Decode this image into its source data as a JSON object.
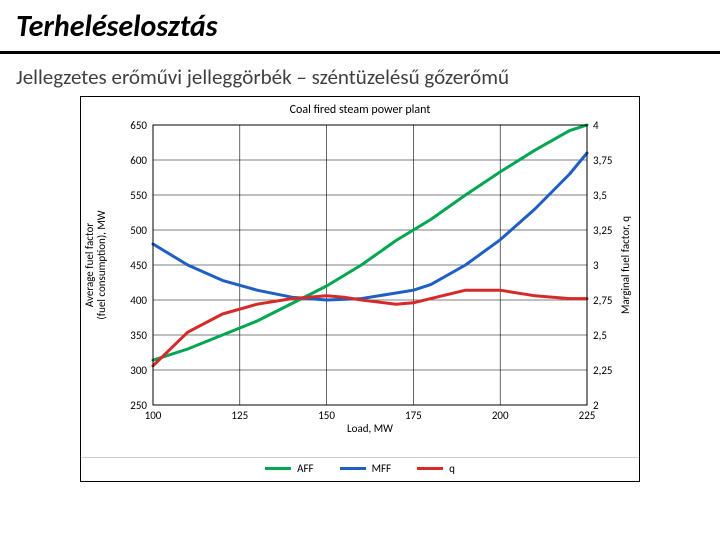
{
  "title": "Terheléselosztás",
  "title_fontsize": 30,
  "subtitle": "Jellegzetes erőművi jelleggörbék – széntüzelésű gőzerőmű",
  "subtitle_fontsize": 21,
  "chart": {
    "type": "line",
    "title": "Coal fired steam power plant",
    "title_fontsize": 12,
    "x_label": "Load, MW",
    "y1_label": "Average fuel factor (fuel consumption), MW",
    "y2_label": "Marginal fuel factor, q",
    "label_fontsize": 11,
    "tick_fontsize": 11,
    "xlim": [
      100,
      225
    ],
    "xtick_step": 25,
    "y1lim": [
      250,
      650
    ],
    "y1tick_step": 50,
    "y2lim": [
      2,
      4
    ],
    "y2tick_step": 0.25,
    "y2tick_labels": [
      "2",
      "2,25",
      "2,5",
      "2,75",
      "3",
      "3,25",
      "3,5",
      "3,75",
      "4"
    ],
    "background_color": "#ffffff",
    "grid_color": "#000000",
    "grid_width": 0.6,
    "border_color": "#000000",
    "line_width": 3,
    "series": [
      {
        "name": "AFF",
        "axis": "y1",
        "color": "#00a650",
        "points": [
          [
            100,
            314
          ],
          [
            110,
            330
          ],
          [
            120,
            350
          ],
          [
            130,
            370
          ],
          [
            140,
            395
          ],
          [
            150,
            420
          ],
          [
            160,
            450
          ],
          [
            170,
            485
          ],
          [
            180,
            515
          ],
          [
            190,
            550
          ],
          [
            200,
            583
          ],
          [
            210,
            614
          ],
          [
            220,
            642
          ],
          [
            225,
            650
          ]
        ]
      },
      {
        "name": "MFF",
        "axis": "y2",
        "color": "#1f5fc4",
        "points": [
          [
            100,
            3.15
          ],
          [
            110,
            3.0
          ],
          [
            120,
            2.89
          ],
          [
            130,
            2.82
          ],
          [
            140,
            2.77
          ],
          [
            150,
            2.75
          ],
          [
            160,
            2.76
          ],
          [
            170,
            2.8
          ],
          [
            175,
            2.82
          ],
          [
            180,
            2.86
          ],
          [
            190,
            3.0
          ],
          [
            200,
            3.18
          ],
          [
            210,
            3.4
          ],
          [
            220,
            3.65
          ],
          [
            225,
            3.8
          ]
        ]
      },
      {
        "name": "q",
        "axis": "y2",
        "color": "#d62a2a",
        "points": [
          [
            100,
            2.28
          ],
          [
            110,
            2.52
          ],
          [
            120,
            2.65
          ],
          [
            130,
            2.72
          ],
          [
            140,
            2.76
          ],
          [
            150,
            2.78
          ],
          [
            155,
            2.77
          ],
          [
            160,
            2.75
          ],
          [
            170,
            2.72
          ],
          [
            175,
            2.73
          ],
          [
            180,
            2.76
          ],
          [
            190,
            2.82
          ],
          [
            200,
            2.82
          ],
          [
            210,
            2.78
          ],
          [
            220,
            2.76
          ],
          [
            225,
            2.76
          ]
        ]
      }
    ],
    "legend": [
      {
        "label": "AFF",
        "color": "#00a650"
      },
      {
        "label": "MFF",
        "color": "#1f5fc4"
      },
      {
        "label": "q",
        "color": "#d62a2a"
      }
    ]
  }
}
